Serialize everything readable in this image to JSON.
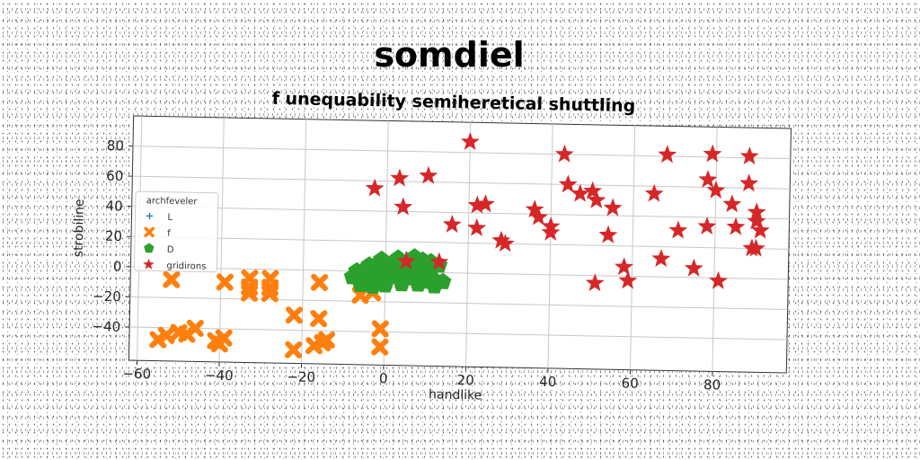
{
  "chart_data": {
    "type": "scatter",
    "title": "somdiel",
    "subtitle": "f unequability semiheretical shuttling",
    "xlabel": "handlike",
    "ylabel": "strobiline",
    "xlim": [
      -62,
      98
    ],
    "ylim": [
      -62,
      100
    ],
    "xticks": [
      -60,
      -40,
      -20,
      0,
      20,
      40,
      60,
      80
    ],
    "yticks": [
      -40,
      -20,
      0,
      20,
      40,
      60,
      80
    ],
    "xtick_labels": [
      "−60",
      "−40",
      "−20",
      "0",
      "20",
      "40",
      "60",
      "80"
    ],
    "ytick_labels": [
      "−40",
      "−20",
      "0",
      "20",
      "40",
      "60",
      "80"
    ],
    "grid": true,
    "legend": {
      "title": "archfeveler",
      "location": "center-left"
    },
    "series": [
      {
        "name": "L",
        "marker": "plus",
        "color": "#1f77b4",
        "points": [
          [
            3,
            8
          ],
          [
            5,
            10
          ],
          [
            7,
            9
          ],
          [
            4,
            6
          ]
        ]
      },
      {
        "name": "f",
        "marker": "x",
        "color": "#ff7f0e",
        "points": [
          [
            -52,
            -8
          ],
          [
            -55,
            -48
          ],
          [
            -53,
            -45
          ],
          [
            -50,
            -43
          ],
          [
            -48,
            -44
          ],
          [
            -46,
            -40
          ],
          [
            -41,
            -48
          ],
          [
            -40,
            -50
          ],
          [
            -39,
            -46
          ],
          [
            -39,
            -9
          ],
          [
            -33,
            -6
          ],
          [
            -33,
            -12
          ],
          [
            -33,
            -16
          ],
          [
            -28,
            -6
          ],
          [
            -28,
            -12
          ],
          [
            -28,
            -16
          ],
          [
            -22,
            -30
          ],
          [
            -16,
            -32
          ],
          [
            -22,
            -53
          ],
          [
            -17,
            -50
          ],
          [
            -15,
            -48
          ],
          [
            -14,
            -46
          ],
          [
            -16,
            -8
          ],
          [
            -1,
            -38
          ],
          [
            -1,
            -50
          ],
          [
            -3,
            -14
          ],
          [
            -6,
            -16
          ]
        ]
      },
      {
        "name": "D",
        "marker": "pentagon",
        "color": "#2ca02c",
        "points": [
          [
            -8,
            -4
          ],
          [
            -6,
            -6
          ],
          [
            -4,
            -3
          ],
          [
            -2,
            -5
          ],
          [
            0,
            -4
          ],
          [
            2,
            -3
          ],
          [
            4,
            -5
          ],
          [
            6,
            -4
          ],
          [
            8,
            -3
          ],
          [
            10,
            -6
          ],
          [
            12,
            -5
          ],
          [
            -7,
            0
          ],
          [
            -5,
            1
          ],
          [
            -3,
            0
          ],
          [
            -1,
            2
          ],
          [
            1,
            1
          ],
          [
            3,
            0
          ],
          [
            5,
            2
          ],
          [
            7,
            1
          ],
          [
            9,
            0
          ],
          [
            11,
            1
          ],
          [
            -4,
            4
          ],
          [
            -2,
            5
          ],
          [
            0,
            4
          ],
          [
            2,
            6
          ],
          [
            4,
            5
          ],
          [
            6,
            7
          ],
          [
            8,
            6
          ],
          [
            10,
            5
          ],
          [
            -1,
            8
          ],
          [
            3,
            9
          ],
          [
            7,
            10
          ],
          [
            9,
            8
          ],
          [
            11,
            7
          ],
          [
            13,
            5
          ],
          [
            -6,
            -9
          ],
          [
            -3,
            -10
          ],
          [
            0,
            -9
          ],
          [
            4,
            -8
          ],
          [
            8,
            -8
          ],
          [
            12,
            -9
          ],
          [
            14,
            -6
          ]
        ]
      },
      {
        "name": "gridirons",
        "marker": "star",
        "color": "#d62728",
        "points": [
          [
            20,
            87
          ],
          [
            43,
            80
          ],
          [
            68,
            81
          ],
          [
            79,
            82
          ],
          [
            88,
            81
          ],
          [
            -3,
            55
          ],
          [
            3,
            62
          ],
          [
            10,
            64
          ],
          [
            4,
            43
          ],
          [
            22,
            45
          ],
          [
            24,
            46
          ],
          [
            16,
            32
          ],
          [
            22,
            30
          ],
          [
            28,
            22
          ],
          [
            29,
            20
          ],
          [
            36,
            43
          ],
          [
            37,
            38
          ],
          [
            40,
            32
          ],
          [
            40,
            28
          ],
          [
            44,
            60
          ],
          [
            47,
            54
          ],
          [
            50,
            56
          ],
          [
            51,
            50
          ],
          [
            55,
            45
          ],
          [
            54,
            27
          ],
          [
            65,
            55
          ],
          [
            71,
            31
          ],
          [
            78,
            65
          ],
          [
            78,
            34
          ],
          [
            80,
            58
          ],
          [
            84,
            49
          ],
          [
            85,
            34
          ],
          [
            88,
            63
          ],
          [
            90,
            44
          ],
          [
            90,
            38
          ],
          [
            91,
            32
          ],
          [
            89,
            20
          ],
          [
            90,
            20
          ],
          [
            67,
            12
          ],
          [
            75,
            6
          ],
          [
            81,
            -2
          ],
          [
            58,
            6
          ],
          [
            59,
            -3
          ],
          [
            51,
            -5
          ],
          [
            5,
            7
          ],
          [
            13,
            7
          ]
        ]
      }
    ]
  }
}
